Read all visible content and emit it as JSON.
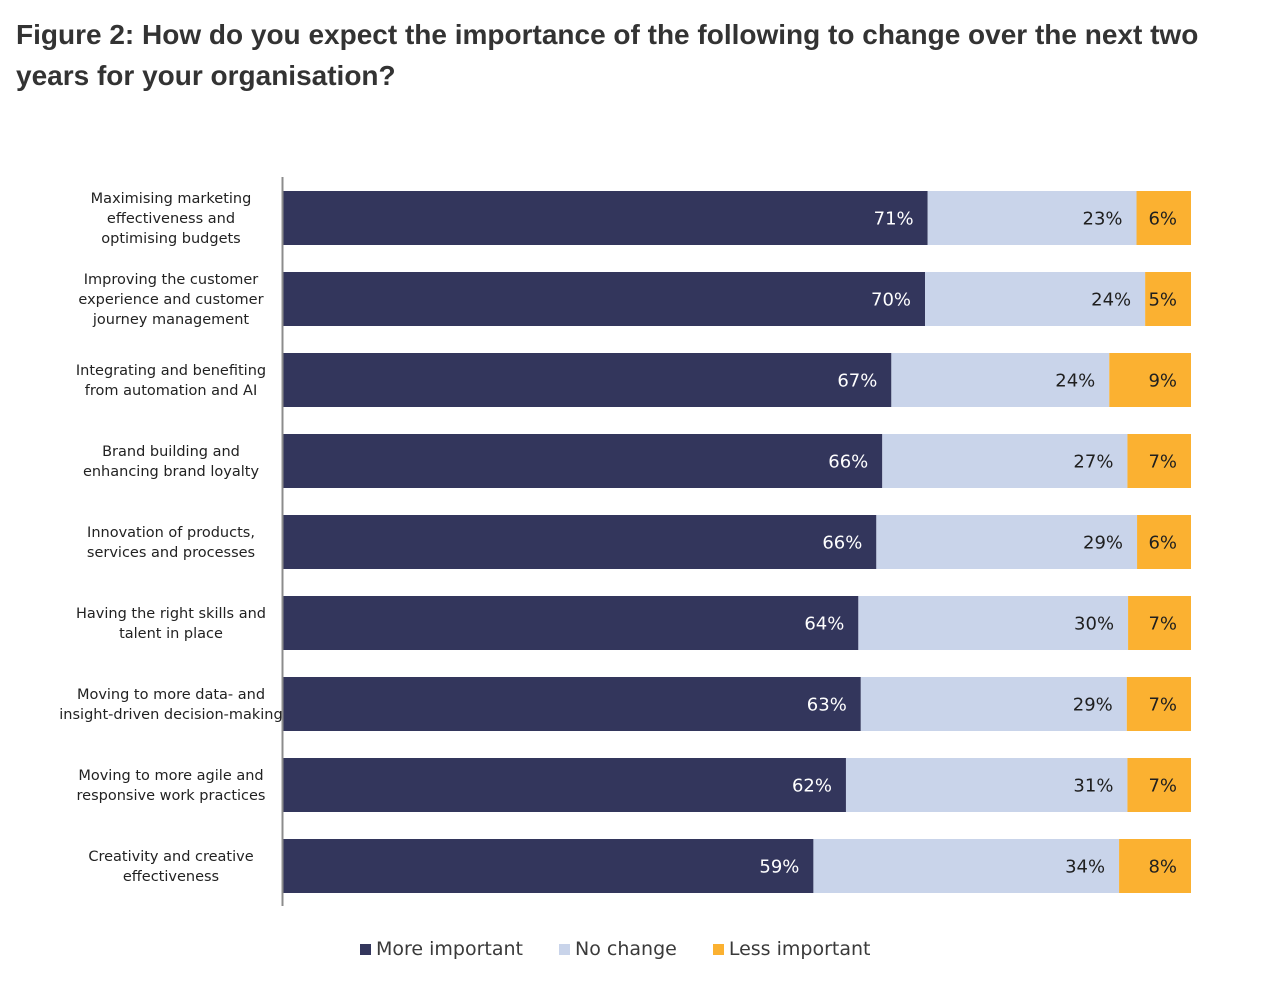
{
  "title": "Figure 2: How do you expect the importance of the following to change over the next two years for your organisation?",
  "chart_data": {
    "type": "bar",
    "orientation": "horizontal",
    "stacked": true,
    "title": "Figure 2: How do you expect the importance of the following to change over the next two years for your organisation?",
    "xlabel": "",
    "ylabel": "",
    "xlim": [
      0,
      100
    ],
    "grid": false,
    "legend_position": "bottom",
    "categories": [
      "Maximising marketing effectiveness and optimising budgets",
      "Improving the customer experience and customer journey management",
      "Integrating and benefiting from automation and AI",
      "Brand building and enhancing brand loyalty",
      "Innovation of products, services and processes",
      "Having the right skills and talent in place",
      "Moving to more data- and insight-driven decision-making",
      "Moving to more agile and responsive work practices",
      "Creativity and creative effectiveness"
    ],
    "category_lines": [
      [
        "Maximising marketing",
        "effectiveness and",
        "optimising budgets"
      ],
      [
        "Improving the customer",
        "experience and customer",
        "journey management"
      ],
      [
        "Integrating and benefiting",
        "from automation and AI"
      ],
      [
        "Brand building and",
        "enhancing brand loyalty"
      ],
      [
        "Innovation of products,",
        "services and processes"
      ],
      [
        "Having the right skills and",
        "talent in place"
      ],
      [
        "Moving to more data- and",
        "insight-driven decision-making"
      ],
      [
        "Moving to more agile and",
        "responsive work practices"
      ],
      [
        "Creativity and creative",
        "effectiveness"
      ]
    ],
    "series": [
      {
        "name": "More important",
        "color": "#33365c",
        "label_color": "#ffffff",
        "values": [
          71,
          70,
          67,
          66,
          66,
          64,
          63,
          62,
          59
        ]
      },
      {
        "name": "No change",
        "color": "#c9d4ea",
        "label_color": "#1f1f1f",
        "values": [
          23,
          24,
          24,
          27,
          29,
          30,
          29,
          31,
          34
        ]
      },
      {
        "name": "Less important",
        "color": "#fbb131",
        "label_color": "#1f1f1f",
        "values": [
          6,
          5,
          9,
          7,
          6,
          7,
          7,
          7,
          8
        ]
      }
    ],
    "value_suffix": "%"
  }
}
